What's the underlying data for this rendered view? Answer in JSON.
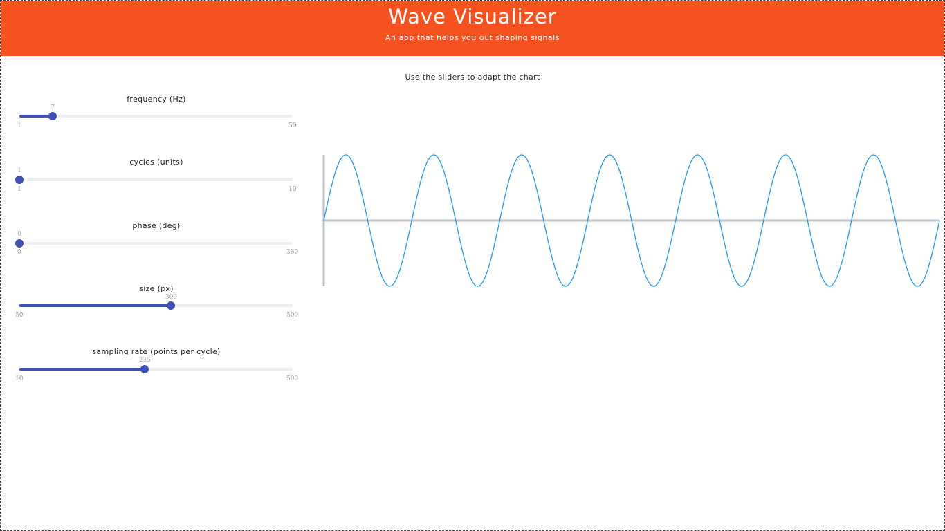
{
  "header": {
    "title": "Wave Visualizer",
    "subtitle": "An app that helps you out shaping signals"
  },
  "instructions": "Use the sliders to adapt the chart",
  "sliders": [
    {
      "label": "frequency (Hz)",
      "value": 7,
      "min": 1,
      "max": 50
    },
    {
      "label": "cycles (units)",
      "value": 1,
      "min": 1,
      "max": 10
    },
    {
      "label": "phase (deg)",
      "value": 0,
      "min": 0,
      "max": 360
    },
    {
      "label": "size (px)",
      "value": 300,
      "min": 50,
      "max": 500
    },
    {
      "label": "sampling rate (points per cycle)",
      "value": 235,
      "min": 10,
      "max": 500
    }
  ],
  "colors": {
    "header": "#f55220",
    "slider": "#3f51b5",
    "wave": "#2196f3",
    "axis": "#bdc3c7"
  }
}
